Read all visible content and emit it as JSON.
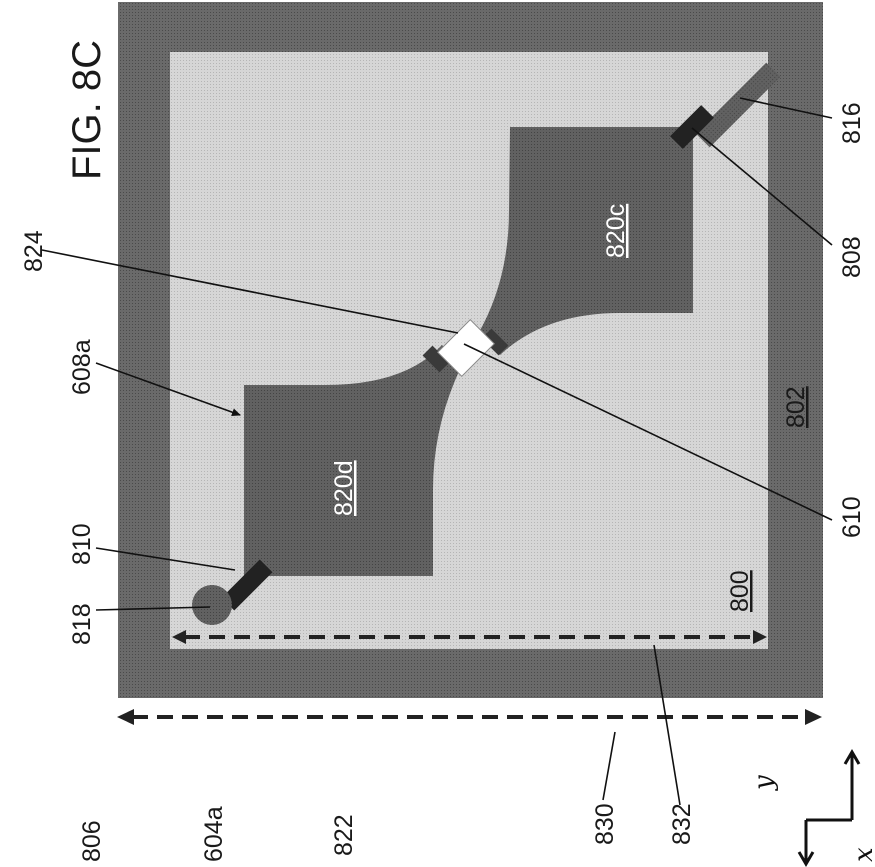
{
  "figure": {
    "title": "FIG. 8C",
    "orientation": "rotated 90° counter-clockwise"
  },
  "labels": {
    "l806": "806",
    "l604a": "604a",
    "l822": "822",
    "l830": "830",
    "l832": "832",
    "l818": "818",
    "l810": "810",
    "l608a": "608a",
    "l824": "824",
    "l610": "610",
    "l808": "808",
    "l816": "816",
    "l820d": "820d",
    "l820c": "820c",
    "l802": "802",
    "l800": "800"
  },
  "axes": {
    "x": "x",
    "y": "y"
  },
  "colors": {
    "frame": "#686868",
    "inner": "#d2d2d2",
    "pad": "#5f5f5f",
    "connector": "#222222",
    "junction": "#ffffff",
    "dashed": "#222222"
  }
}
